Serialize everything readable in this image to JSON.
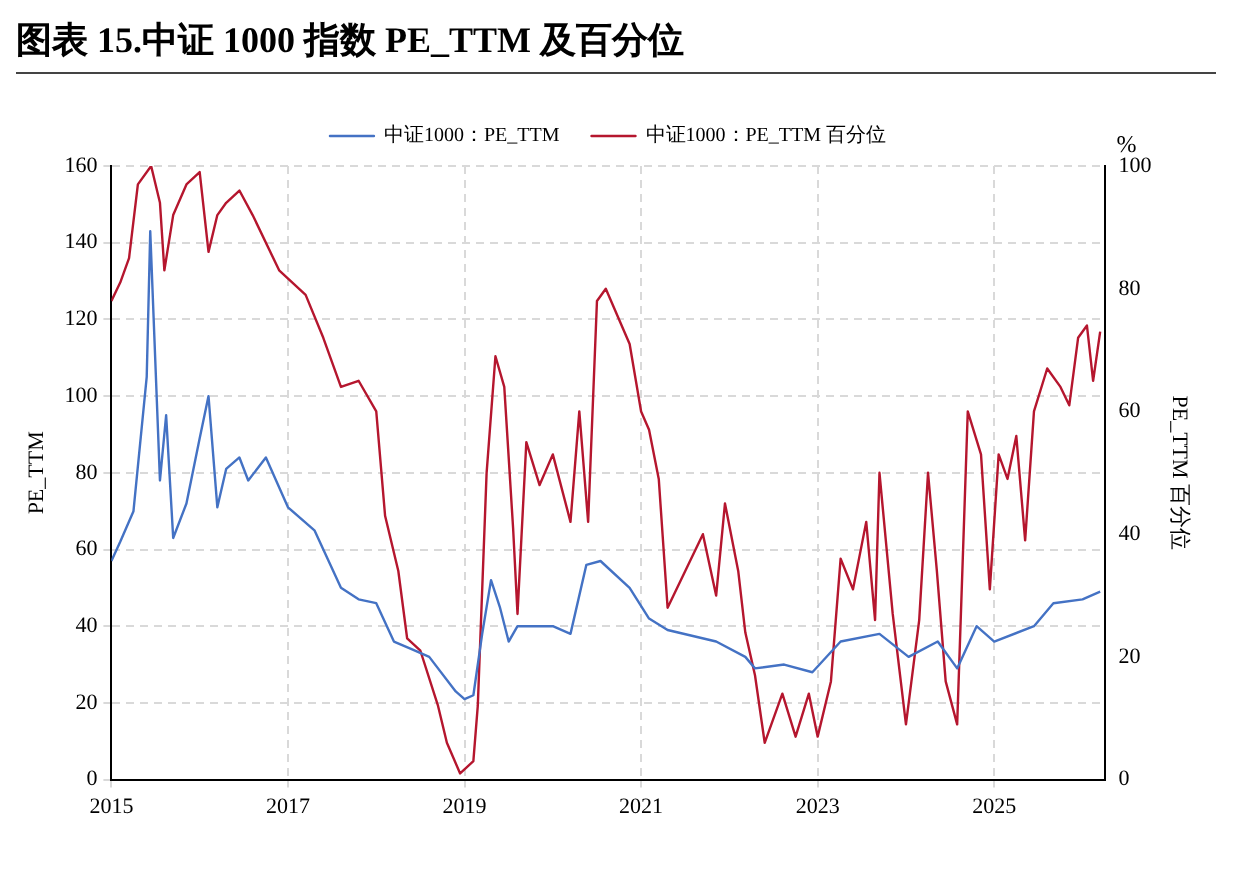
{
  "chart_data": {
    "type": "line",
    "title": "图表 15.中证 1000 指数 PE_TTM 及百分位",
    "ylabel": "PE_TTM",
    "y2label": "PE_TTM 百分位",
    "annotations": [
      "%"
    ],
    "xlim": [
      2015,
      2026.25
    ],
    "xticks": [
      2015,
      2017,
      2019,
      2021,
      2023,
      2025
    ],
    "ylim": [
      0,
      160
    ],
    "yticks": [
      0,
      20,
      40,
      60,
      80,
      100,
      120,
      140,
      160
    ],
    "y2lim": [
      0,
      100
    ],
    "y2ticks": [
      0,
      20,
      40,
      60,
      80,
      100
    ],
    "grid": true,
    "legend": "top",
    "marker": "none",
    "line_style": "solid",
    "series": [
      {
        "name": "中证1000：PE_TTM",
        "color": "#4472c4",
        "x": [
          2015,
          2015.1,
          2015.25,
          2015.4,
          2015.44,
          2015.55,
          2015.62,
          2015.7,
          2015.85,
          2016,
          2016.1,
          2016.2,
          2016.3,
          2016.45,
          2016.55,
          2016.75,
          2017,
          2017.3,
          2017.6,
          2017.8,
          2018,
          2018.2,
          2018.4,
          2018.6,
          2018.9,
          2019,
          2019.1,
          2019.2,
          2019.3,
          2019.4,
          2019.5,
          2019.6,
          2020,
          2020.2,
          2020.38,
          2020.54,
          2020.87,
          2021.09,
          2021.3,
          2021.85,
          2022.18,
          2022.29,
          2022.62,
          2022.94,
          2023.26,
          2023.7,
          2024.03,
          2024.36,
          2024.58,
          2024.8,
          2025,
          2025.45,
          2025.67,
          2026,
          2026.2
        ],
        "values": [
          57,
          62,
          70,
          105,
          143,
          78,
          95,
          63,
          72,
          89,
          100,
          71,
          81,
          84,
          78,
          84,
          71,
          65,
          50,
          47,
          46,
          36,
          34,
          32,
          23,
          21,
          22,
          38,
          52,
          45,
          36,
          40,
          40,
          38,
          56,
          57,
          50,
          42,
          39,
          36,
          32,
          29,
          30,
          28,
          36,
          38,
          32,
          36,
          29,
          40,
          36,
          40,
          46,
          47,
          49
        ]
      },
      {
        "name": "中证1000：PE_TTM 百分位",
        "color": "#b5162e",
        "axis": "y2",
        "x": [
          2015,
          2015.1,
          2015.2,
          2015.3,
          2015.45,
          2015.55,
          2015.6,
          2015.7,
          2015.85,
          2016,
          2016.1,
          2016.2,
          2016.3,
          2016.45,
          2016.6,
          2016.9,
          2017.2,
          2017.4,
          2017.6,
          2017.8,
          2018,
          2018.1,
          2018.25,
          2018.35,
          2018.5,
          2018.7,
          2018.8,
          2018.95,
          2019.1,
          2019.15,
          2019.25,
          2019.35,
          2019.45,
          2019.55,
          2019.6,
          2019.7,
          2019.85,
          2020,
          2020.2,
          2020.3,
          2020.4,
          2020.5,
          2020.6,
          2020.87,
          2021,
          2021.09,
          2021.2,
          2021.3,
          2021.5,
          2021.7,
          2021.85,
          2021.95,
          2022.1,
          2022.18,
          2022.29,
          2022.4,
          2022.6,
          2022.75,
          2022.9,
          2023,
          2023.15,
          2023.26,
          2023.4,
          2023.55,
          2023.65,
          2023.7,
          2023.85,
          2024,
          2024.15,
          2024.25,
          2024.35,
          2024.45,
          2024.58,
          2024.7,
          2024.85,
          2024.95,
          2025.05,
          2025.15,
          2025.25,
          2025.35,
          2025.45,
          2025.6,
          2025.75,
          2025.85,
          2025.95,
          2026.05,
          2026.12,
          2026.2
        ],
        "values": [
          78,
          81,
          85,
          97,
          100,
          94,
          83,
          92,
          97,
          99,
          86,
          92,
          94,
          96,
          92,
          83,
          79,
          72,
          64,
          65,
          60,
          43,
          34,
          23,
          21,
          12,
          6,
          1,
          3,
          12,
          50,
          69,
          64,
          41,
          27,
          55,
          48,
          53,
          42,
          60,
          42,
          78,
          80,
          71,
          60,
          57,
          49,
          28,
          34,
          40,
          30,
          45,
          34,
          24,
          17,
          6,
          14,
          7,
          14,
          7,
          16,
          36,
          31,
          42,
          26,
          50,
          27,
          9,
          26,
          50,
          34,
          16,
          9,
          60,
          53,
          31,
          53,
          49,
          56,
          39,
          60,
          67,
          64,
          61,
          72,
          74,
          65,
          73
        ]
      }
    ]
  }
}
